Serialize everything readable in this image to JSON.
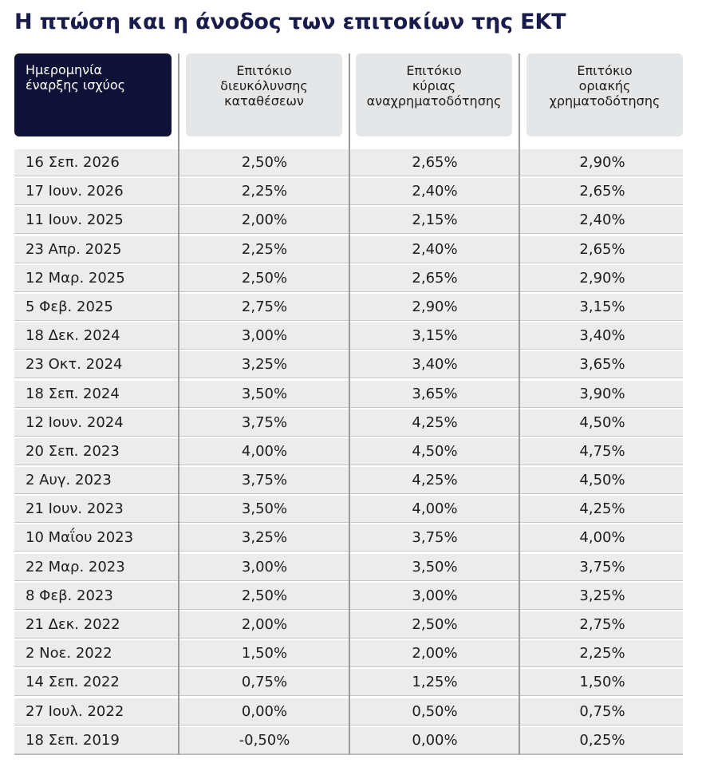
{
  "title": "Η πτώση και η άνοδος των επιτοκίων της ΕΚΤ",
  "colors": {
    "title": "#1a1d4c",
    "header_dark": "#0f1136",
    "header_light": "#e5e6e8",
    "row_background": "#ececed"
  },
  "headers": {
    "date": [
      "Ημερομηνία",
      "έναρξης ισχύος"
    ],
    "deposit": [
      "Επιτόκιο",
      "διευκόλυνσης",
      "καταθέσεων"
    ],
    "main": [
      "Επιτόκιο",
      "κύριας",
      "αναχρηματοδότησης"
    ],
    "marginal": [
      "Επιτόκιο",
      "οριακής",
      "χρηματοδότησης"
    ]
  },
  "rows": [
    {
      "date": "16 Σεπ. 2026",
      "deposit": "2,50%",
      "main": "2,65%",
      "marginal": "2,90%"
    },
    {
      "date": "17 Ιουν. 2026",
      "deposit": "2,25%",
      "main": "2,40%",
      "marginal": "2,65%"
    },
    {
      "date": "11 Ιουν. 2025",
      "deposit": "2,00%",
      "main": "2,15%",
      "marginal": "2,40%"
    },
    {
      "date": "23 Απρ. 2025",
      "deposit": "2,25%",
      "main": "2,40%",
      "marginal": "2,65%"
    },
    {
      "date": "12 Μαρ. 2025",
      "deposit": "2,50%",
      "main": "2,65%",
      "marginal": "2,90%"
    },
    {
      "date": "5 Φεβ. 2025",
      "deposit": "2,75%",
      "main": "2,90%",
      "marginal": "3,15%"
    },
    {
      "date": "18 Δεκ. 2024",
      "deposit": "3,00%",
      "main": "3,15%",
      "marginal": "3,40%"
    },
    {
      "date": "23 Οκτ. 2024",
      "deposit": "3,25%",
      "main": "3,40%",
      "marginal": "3,65%"
    },
    {
      "date": "18 Σεπ. 2024",
      "deposit": "3,50%",
      "main": "3,65%",
      "marginal": "3,90%"
    },
    {
      "date": "12 Ιουν. 2024",
      "deposit": "3,75%",
      "main": "4,25%",
      "marginal": "4,50%"
    },
    {
      "date": "20 Σεπ. 2023",
      "deposit": "4,00%",
      "main": "4,50%",
      "marginal": "4,75%"
    },
    {
      "date": "2 Αυγ. 2023",
      "deposit": "3,75%",
      "main": "4,25%",
      "marginal": "4,50%"
    },
    {
      "date": "21 Ιουν. 2023",
      "deposit": "3,50%",
      "main": "4,00%",
      "marginal": "4,25%"
    },
    {
      "date": "10 Μαΐου 2023",
      "deposit": "3,25%",
      "main": "3,75%",
      "marginal": "4,00%"
    },
    {
      "date": "22 Μαρ. 2023",
      "deposit": "3,00%",
      "main": "3,50%",
      "marginal": "3,75%"
    },
    {
      "date": "8 Φεβ. 2023",
      "deposit": "2,50%",
      "main": "3,00%",
      "marginal": "3,25%"
    },
    {
      "date": "21 Δεκ. 2022",
      "deposit": "2,00%",
      "main": "2,50%",
      "marginal": "2,75%"
    },
    {
      "date": "2 Νοε. 2022",
      "deposit": "1,50%",
      "main": "2,00%",
      "marginal": "2,25%"
    },
    {
      "date": "14 Σεπ. 2022",
      "deposit": "0,75%",
      "main": "1,25%",
      "marginal": "1,50%"
    },
    {
      "date": "27 Ιουλ. 2022",
      "deposit": "0,00%",
      "main": "0,50%",
      "marginal": "0,75%"
    },
    {
      "date": "18 Σεπ. 2019",
      "deposit": "-0,50%",
      "main": "0,00%",
      "marginal": "0,25%"
    }
  ]
}
